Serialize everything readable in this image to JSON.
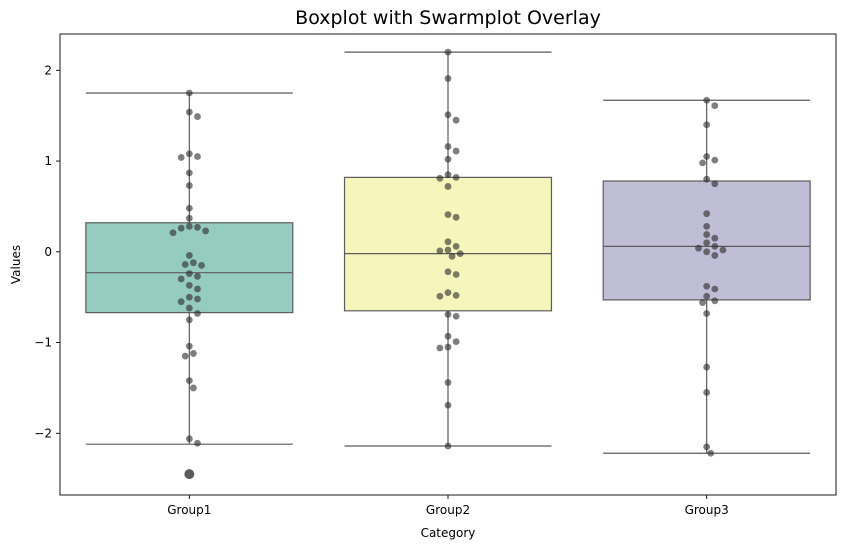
{
  "chart_data": {
    "type": "boxplot",
    "title": "Boxplot with Swarmplot Overlay",
    "xlabel": "Category",
    "ylabel": "Values",
    "ylim": [
      -2.68,
      2.4
    ],
    "yticks": [
      -2,
      -1,
      0,
      1,
      2
    ],
    "ytick_labels": [
      "−2",
      "−1",
      "0",
      "1",
      "2"
    ],
    "categories": [
      "Group1",
      "Group2",
      "Group3"
    ],
    "grid": false,
    "boxes": [
      {
        "name": "Group1",
        "color": "#96cbc1",
        "whislo": -2.12,
        "q1": -0.67,
        "median": -0.23,
        "q3": 0.32,
        "whishi": 1.75,
        "fliers": [
          -2.45
        ],
        "points": [
          1.75,
          1.54,
          1.49,
          1.08,
          1.05,
          1.04,
          0.87,
          0.73,
          0.48,
          0.37,
          0.28,
          0.27,
          0.26,
          0.23,
          0.21,
          -0.04,
          -0.12,
          -0.14,
          -0.15,
          -0.24,
          -0.27,
          -0.3,
          -0.37,
          -0.41,
          -0.5,
          -0.52,
          -0.55,
          -0.62,
          -0.68,
          -0.75,
          -1.04,
          -1.12,
          -1.15,
          -1.42,
          -1.5,
          -2.06,
          -2.11
        ]
      },
      {
        "name": "Group2",
        "color": "#f6f6bc",
        "whislo": -2.14,
        "q1": -0.65,
        "median": -0.02,
        "q3": 0.82,
        "whishi": 2.2,
        "fliers": [],
        "points": [
          2.2,
          1.91,
          1.51,
          1.45,
          1.16,
          1.11,
          1.02,
          0.85,
          0.82,
          0.81,
          0.72,
          0.41,
          0.38,
          0.11,
          0.06,
          0.02,
          0.01,
          -0.02,
          -0.05,
          -0.22,
          -0.25,
          -0.45,
          -0.48,
          -0.49,
          -0.69,
          -0.71,
          -0.93,
          -0.99,
          -1.05,
          -1.06,
          -1.44,
          -1.69,
          -2.14
        ]
      },
      {
        "name": "Group3",
        "color": "#c0bdd7",
        "whislo": -2.22,
        "q1": -0.53,
        "median": 0.06,
        "q3": 0.78,
        "whishi": 1.67,
        "fliers": [],
        "points": [
          1.67,
          1.61,
          1.4,
          1.05,
          1.01,
          0.98,
          0.8,
          0.75,
          0.42,
          0.28,
          0.19,
          0.15,
          0.1,
          0.06,
          0.04,
          0.02,
          0.0,
          -0.04,
          -0.38,
          -0.41,
          -0.49,
          -0.54,
          -0.56,
          -0.68,
          -1.27,
          -1.55,
          -2.15,
          -2.22
        ]
      }
    ]
  }
}
